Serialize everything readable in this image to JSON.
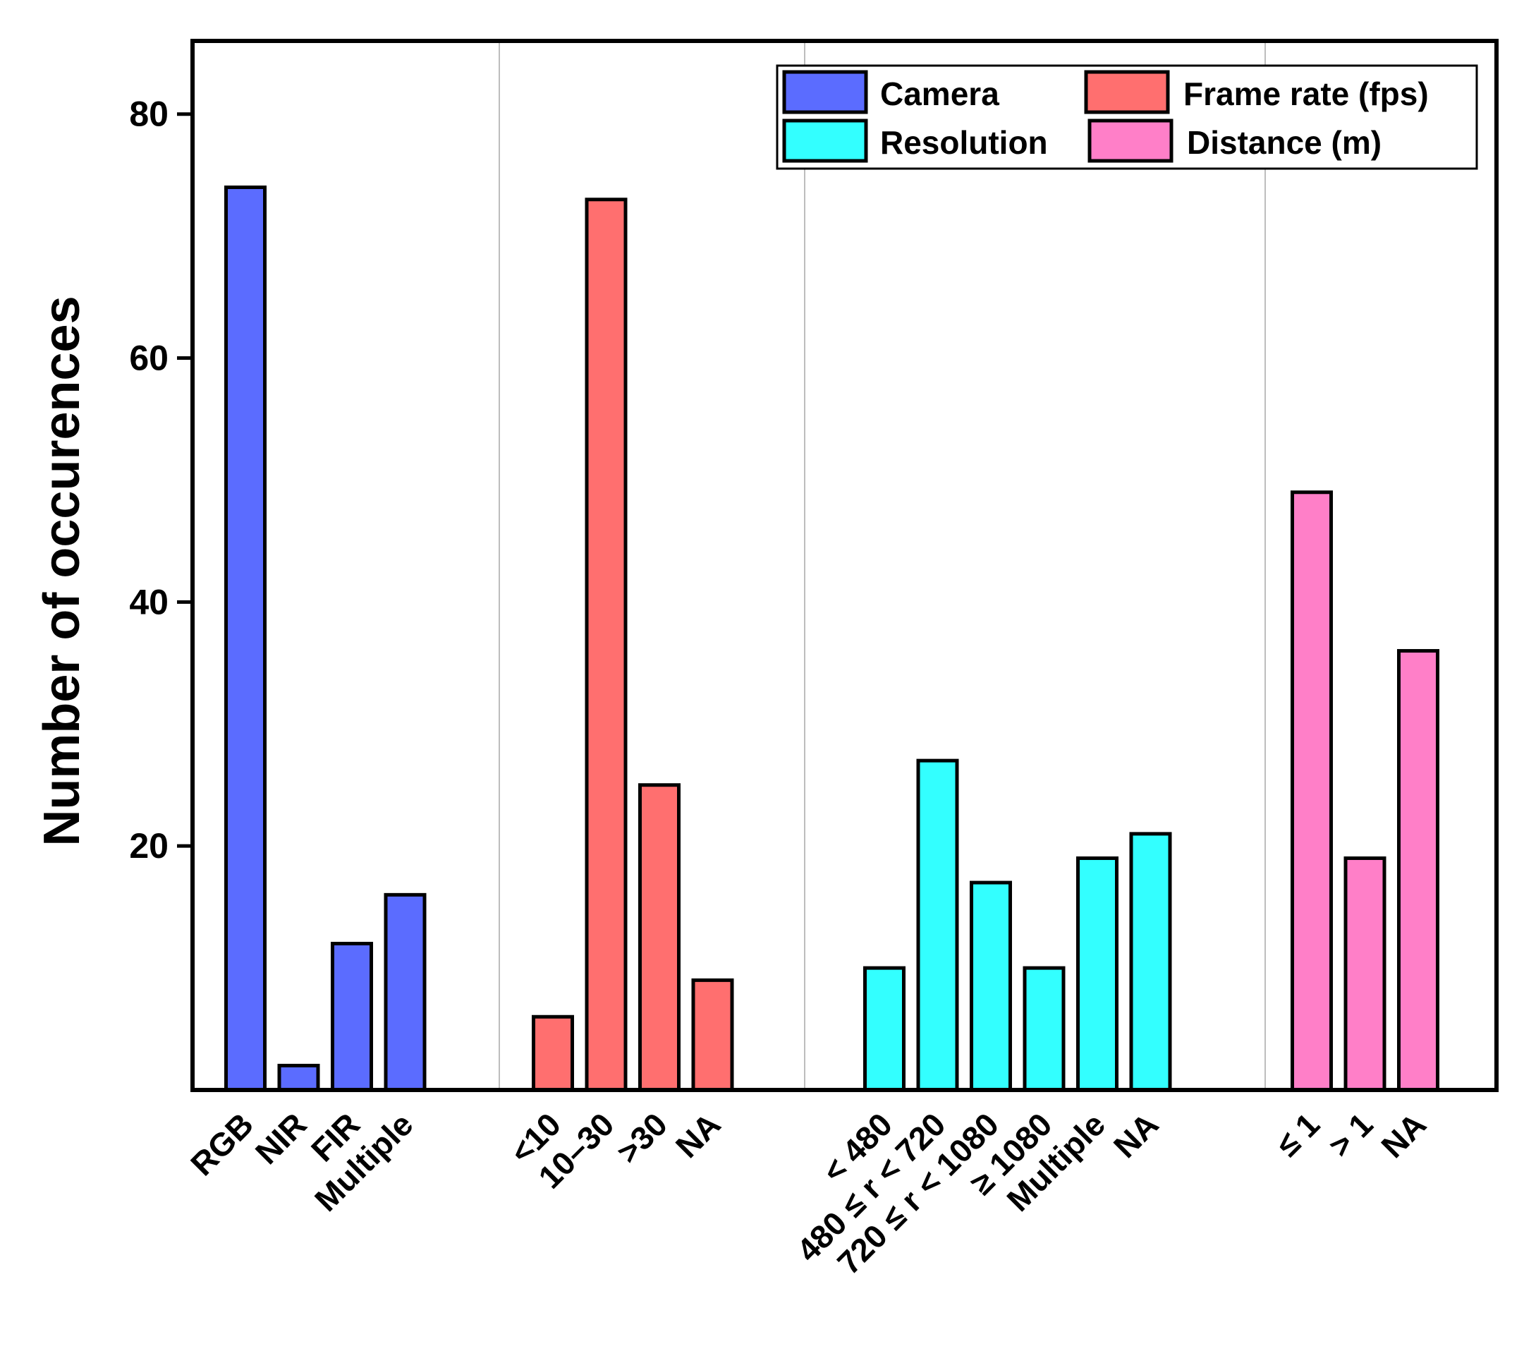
{
  "chart_data": {
    "type": "bar",
    "ylabel": "Number of occurences",
    "xlabel": "",
    "ylim": [
      0,
      86
    ],
    "yticks": [
      20,
      40,
      60,
      80
    ],
    "grid": false,
    "legend_position": "top-right",
    "groups": [
      {
        "name": "Camera",
        "color": "#5B6CFF",
        "categories": [
          "RGB",
          "NIR",
          "FIR",
          "Multiple"
        ],
        "values": [
          74,
          2,
          12,
          16
        ]
      },
      {
        "name": "Frame rate (fps)",
        "color": "#FF6F6F",
        "categories": [
          "<10",
          "10–30",
          ">30",
          "NA"
        ],
        "values": [
          6,
          73,
          25,
          9
        ]
      },
      {
        "name": "Resolution",
        "color": "#33FFFF",
        "categories": [
          "< 480",
          "480 ≤ r < 720",
          "720 ≤ r < 1080",
          "≥ 1080",
          "Multiple",
          "NA"
        ],
        "values": [
          10,
          27,
          17,
          10,
          19,
          21
        ]
      },
      {
        "name": "Distance (m)",
        "color": "#FF7FC8",
        "categories": [
          "≤ 1",
          "> 1",
          "NA"
        ],
        "values": [
          49,
          19,
          36
        ]
      }
    ],
    "legend": [
      {
        "label": "Camera",
        "color": "#5B6CFF"
      },
      {
        "label": "Frame rate (fps)",
        "color": "#FF6F6F"
      },
      {
        "label": "Resolution",
        "color": "#33FFFF"
      },
      {
        "label": "Distance (m)",
        "color": "#FF7FC8"
      }
    ]
  }
}
